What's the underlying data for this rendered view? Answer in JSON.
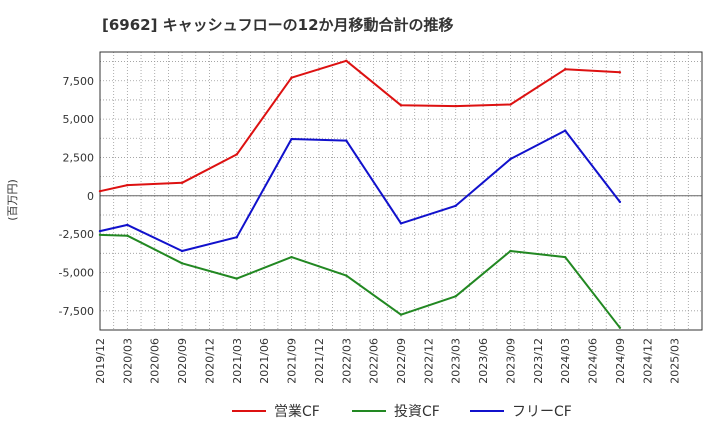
{
  "chart_data": {
    "type": "line",
    "title": "[6962]  キャッシュフローの12か月移動合計の推移",
    "xlabel": "",
    "ylabel": "(百万円)",
    "ylim": [
      -8750,
      9375
    ],
    "y_ticks": [
      7500,
      5000,
      2500,
      0,
      -2500,
      -5000,
      -7500
    ],
    "y_tick_labels": [
      "7,500",
      "5,000",
      "2,500",
      "0",
      "-2,500",
      "-5,000",
      "-7,500"
    ],
    "x_ticks": [
      "2019/12",
      "2020/03",
      "2020/06",
      "2020/09",
      "2020/12",
      "2021/03",
      "2021/06",
      "2021/09",
      "2021/12",
      "2022/03",
      "2022/06",
      "2022/09",
      "2022/12",
      "2023/03",
      "2023/06",
      "2023/09",
      "2023/12",
      "2024/03",
      "2024/06",
      "2024/09",
      "2024/12",
      "2025/03"
    ],
    "grid": true,
    "legend_position": "bottom",
    "series": [
      {
        "name": "営業CF",
        "color": "#dd1111",
        "points": [
          {
            "x": "2019/12",
            "y": 300
          },
          {
            "x": "2020/03",
            "y": 700
          },
          {
            "x": "2020/09",
            "y": 850
          },
          {
            "x": "2021/03",
            "y": 2700
          },
          {
            "x": "2021/09",
            "y": 7700
          },
          {
            "x": "2022/03",
            "y": 8800
          },
          {
            "x": "2022/09",
            "y": 5900
          },
          {
            "x": "2023/03",
            "y": 5850
          },
          {
            "x": "2023/09",
            "y": 5950
          },
          {
            "x": "2024/03",
            "y": 8250
          },
          {
            "x": "2024/09",
            "y": 8050
          }
        ]
      },
      {
        "name": "投資CF",
        "color": "#228822",
        "points": [
          {
            "x": "2019/12",
            "y": -2550
          },
          {
            "x": "2020/03",
            "y": -2600
          },
          {
            "x": "2020/09",
            "y": -4400
          },
          {
            "x": "2021/03",
            "y": -5400
          },
          {
            "x": "2021/09",
            "y": -4000
          },
          {
            "x": "2022/03",
            "y": -5200
          },
          {
            "x": "2022/09",
            "y": -7750
          },
          {
            "x": "2023/03",
            "y": -6550
          },
          {
            "x": "2023/09",
            "y": -3600
          },
          {
            "x": "2024/03",
            "y": -4000
          },
          {
            "x": "2024/09",
            "y": -8600
          }
        ]
      },
      {
        "name": "フリーCF",
        "color": "#1111cc",
        "points": [
          {
            "x": "2019/12",
            "y": -2300
          },
          {
            "x": "2020/03",
            "y": -1900
          },
          {
            "x": "2020/09",
            "y": -3600
          },
          {
            "x": "2021/03",
            "y": -2700
          },
          {
            "x": "2021/09",
            "y": 3700
          },
          {
            "x": "2022/03",
            "y": 3600
          },
          {
            "x": "2022/09",
            "y": -1800
          },
          {
            "x": "2023/03",
            "y": -650
          },
          {
            "x": "2023/09",
            "y": 2400
          },
          {
            "x": "2024/03",
            "y": 4250
          },
          {
            "x": "2024/09",
            "y": -400
          }
        ]
      }
    ]
  }
}
